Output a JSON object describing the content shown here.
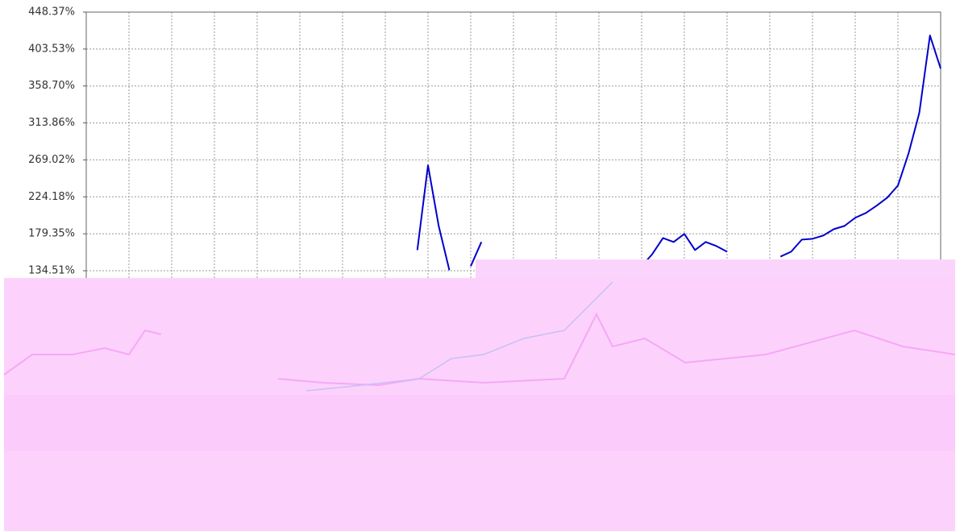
{
  "chart_data": {
    "type": "line",
    "ylim": [
      134.51,
      448.37
    ],
    "yticks": [
      {
        "value": 134.51,
        "label": "134.51%"
      },
      {
        "value": 179.35,
        "label": "179.35%"
      },
      {
        "value": 224.18,
        "label": "224.18%"
      },
      {
        "value": 269.02,
        "label": "269.02%"
      },
      {
        "value": 313.86,
        "label": "313.86%"
      },
      {
        "value": 358.7,
        "label": "358.70%"
      },
      {
        "value": 403.53,
        "label": "403.53%"
      },
      {
        "value": 448.37,
        "label": "448.37%"
      }
    ],
    "grid": true,
    "series": [
      {
        "color": "#0000cc",
        "values": [
          null,
          null,
          null,
          null,
          null,
          null,
          null,
          null,
          null,
          null,
          null,
          null,
          null,
          null,
          null,
          null,
          null,
          null,
          null,
          null,
          null,
          null,
          null,
          null,
          null,
          null,
          null,
          null,
          null,
          null,
          null,
          159.6,
          262.4,
          188.9,
          135.1,
          null,
          140.0,
          169.4,
          null,
          null,
          null,
          null,
          null,
          null,
          null,
          null,
          null,
          null,
          null,
          null,
          null,
          null,
          140.0,
          154.7,
          174.2,
          169.4,
          179.2,
          159.6,
          169.4,
          164.5,
          157.6,
          null,
          null,
          null,
          null,
          151.7,
          157.6,
          172.3,
          173.3,
          177.2,
          185.0,
          188.9,
          198.8,
          204.6,
          213.4,
          223.2,
          237.9,
          277.1,
          326.0,
          420.0,
          379.8
        ]
      }
    ]
  }
}
